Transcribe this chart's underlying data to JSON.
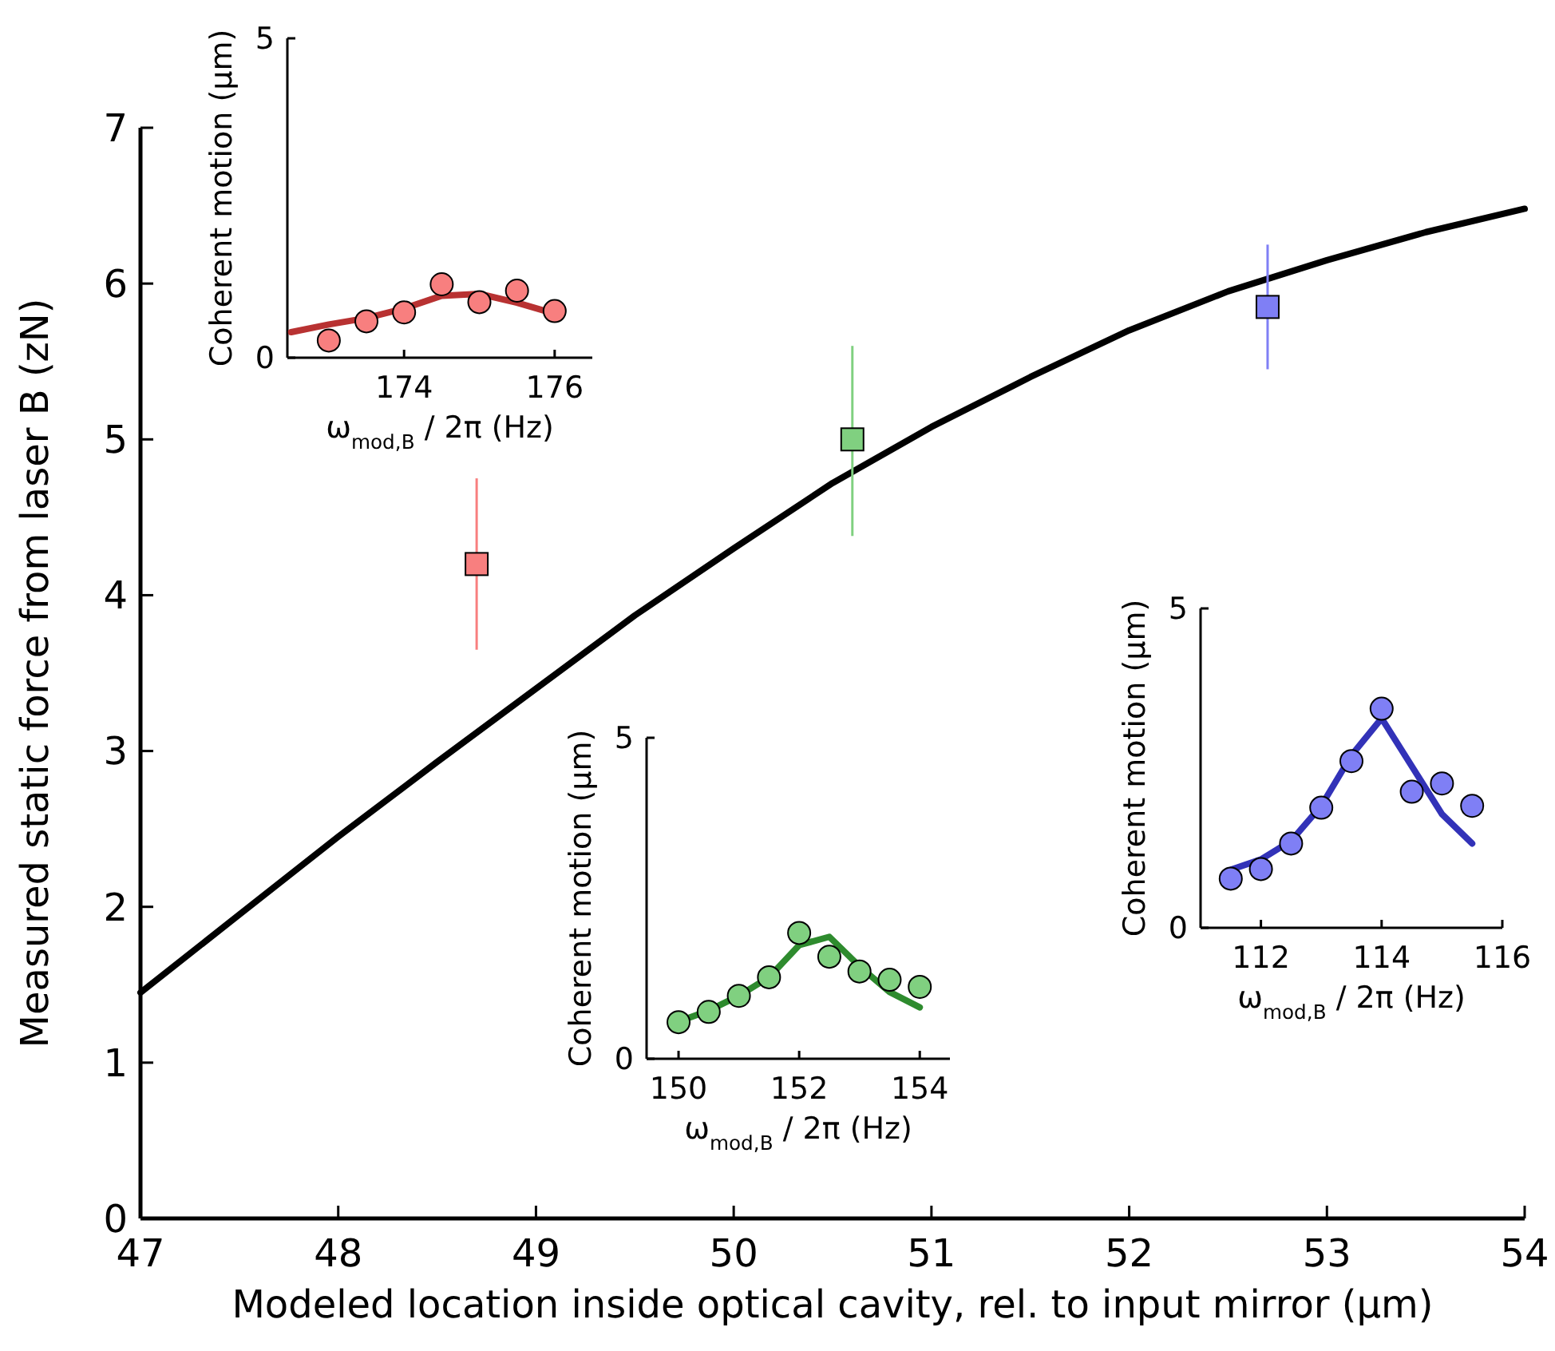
{
  "chart_data": [
    {
      "type": "line",
      "xlabel": "Modeled location inside optical cavity, rel. to input mirror (μm)",
      "ylabel": "Measured static force from laser B (zN)",
      "xlim": [
        47,
        54
      ],
      "ylim": [
        0,
        7
      ],
      "xticks": [
        47,
        48,
        49,
        50,
        51,
        52,
        53,
        54
      ],
      "yticks": [
        0,
        1,
        2,
        3,
        4,
        5,
        6,
        7
      ],
      "grid": false,
      "series": [
        {
          "color": "#000000",
          "line_style": "solid",
          "marker": "none",
          "x": [
            47,
            47.5,
            48,
            48.5,
            49,
            49.5,
            50,
            50.5,
            51,
            51.5,
            52,
            52.5,
            53,
            53.5,
            54
          ],
          "values": [
            1.45,
            1.95,
            2.45,
            2.93,
            3.4,
            3.87,
            4.3,
            4.72,
            5.08,
            5.4,
            5.7,
            5.95,
            6.15,
            6.33,
            6.48
          ]
        },
        {
          "type": "scatter",
          "marker": "square",
          "x": [
            48.7,
            50.6,
            52.7
          ],
          "values": [
            4.2,
            5.0,
            5.85
          ],
          "colors": [
            "#f87f7f",
            "#80d080",
            "#7f7ff5"
          ],
          "errors": [
            [
              3.65,
              4.75
            ],
            [
              4.38,
              5.6
            ],
            [
              5.45,
              6.25
            ]
          ]
        }
      ]
    },
    {
      "type": "scatter",
      "xlabel": "ω$_{mod,B}$ / 2π (Hz)",
      "ylabel": "Coherent motion (μm)",
      "xlim": [
        172.45,
        176.5
      ],
      "ylim": [
        0,
        5
      ],
      "xticks": [
        174,
        176
      ],
      "yticks": [
        0,
        5
      ],
      "grid": false,
      "series": [
        {
          "type": "line",
          "color": "#b83232",
          "line_style": "solid",
          "marker": "none",
          "x": [
            172.5,
            173,
            173.5,
            174,
            174.5,
            175,
            175.5,
            176
          ],
          "values": [
            0.4,
            0.52,
            0.62,
            0.77,
            0.97,
            1.0,
            0.86,
            0.69
          ]
        },
        {
          "color": "#f87f7f",
          "marker": "circle",
          "x": [
            173,
            173.5,
            174,
            174.5,
            175,
            175.5,
            176
          ],
          "values": [
            0.27,
            0.57,
            0.71,
            1.15,
            0.87,
            1.05,
            0.73
          ]
        }
      ]
    },
    {
      "type": "scatter",
      "xlabel": "ω$_{mod,B}$ / 2π (Hz)",
      "ylabel": "Coherent motion (μm)",
      "xlim": [
        149.47,
        154.5
      ],
      "ylim": [
        0,
        5
      ],
      "xticks": [
        150,
        152,
        154
      ],
      "yticks": [
        0,
        5
      ],
      "grid": false,
      "series": [
        {
          "type": "line",
          "color": "#2e8b2e",
          "line_style": "solid",
          "marker": "none",
          "x": [
            150,
            150.5,
            151,
            151.5,
            152,
            152.5,
            153,
            153.5,
            154
          ],
          "values": [
            0.58,
            0.75,
            0.98,
            1.27,
            1.77,
            1.9,
            1.44,
            1.04,
            0.8
          ]
        },
        {
          "color": "#80d080",
          "marker": "circle",
          "x": [
            150,
            150.5,
            151,
            151.5,
            152,
            152.5,
            153,
            153.5,
            154
          ],
          "values": [
            0.57,
            0.73,
            0.98,
            1.27,
            1.96,
            1.59,
            1.36,
            1.23,
            1.12
          ]
        }
      ]
    },
    {
      "type": "scatter",
      "xlabel": "ω$_{mod,B}$ / 2π (Hz)",
      "ylabel": "Coherent motion (μm)",
      "xlim": [
        111,
        116
      ],
      "ylim": [
        0,
        5
      ],
      "xticks": [
        112,
        114,
        116
      ],
      "yticks": [
        0,
        5
      ],
      "grid": false,
      "series": [
        {
          "type": "line",
          "color": "#3232b8",
          "line_style": "solid",
          "marker": "none",
          "x": [
            111.5,
            112,
            112.5,
            113,
            113.5,
            114,
            114.5,
            115,
            115.5
          ],
          "values": [
            0.91,
            1.07,
            1.36,
            1.91,
            2.7,
            3.28,
            2.53,
            1.78,
            1.32
          ]
        },
        {
          "color": "#7f7ff5",
          "marker": "circle",
          "x": [
            111.5,
            112,
            112.5,
            113,
            113.5,
            114,
            114.5,
            115,
            115.5
          ],
          "values": [
            0.77,
            0.92,
            1.32,
            1.88,
            2.61,
            3.43,
            2.13,
            2.26,
            1.91
          ]
        }
      ]
    }
  ]
}
